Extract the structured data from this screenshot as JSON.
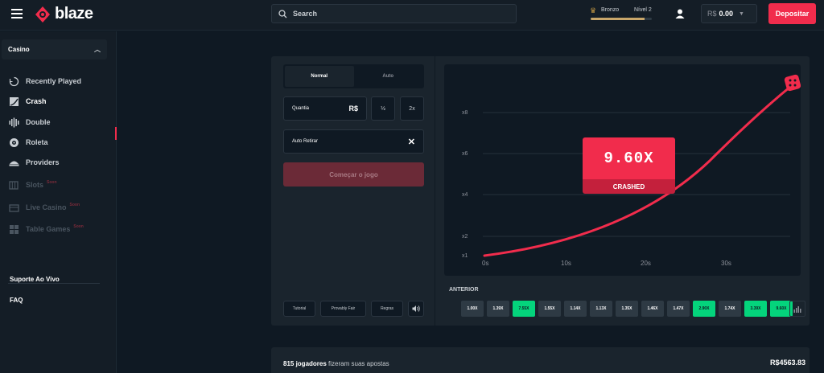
{
  "header": {
    "brand": "blaze",
    "search_placeholder": "Search",
    "rank": {
      "name": "Bronzo",
      "level": "Nível 2",
      "progress": 0.88
    },
    "balance": {
      "currency": "R$",
      "amount": "0.00"
    },
    "deposit_label": "Depositar"
  },
  "sidebar": {
    "section_title": "Casino",
    "items": [
      {
        "label": "Recently Played",
        "icon": "history-icon"
      },
      {
        "label": "Crash",
        "icon": "crash-chart-icon",
        "active": true
      },
      {
        "label": "Double",
        "icon": "double-bars-icon"
      },
      {
        "label": "Roleta",
        "icon": "roulette-icon"
      },
      {
        "label": "Providers",
        "icon": "providers-icon"
      },
      {
        "label": "Slots",
        "icon": "slots-icon",
        "badge": "Soon"
      },
      {
        "label": "Live Casino",
        "icon": "live-casino-icon",
        "badge": "Soon"
      },
      {
        "label": "Table Games",
        "icon": "table-games-icon",
        "badge": "Soon"
      }
    ],
    "links": [
      "Suporte Ao Vivo",
      "FAQ"
    ]
  },
  "controls": {
    "tabs": [
      "Normal",
      "Auto"
    ],
    "amount_label": "Quantia",
    "amount_currency": "R$",
    "half_label": "½",
    "double_label": "2x",
    "auto_cashout_label": "Auto Retirar",
    "start_label": "Começar o jogo",
    "footer_buttons": [
      "Tutorial",
      "Provably Fair",
      "Regras"
    ]
  },
  "graph": {
    "y_ticks": [
      "x8",
      "x6",
      "x4",
      "x2",
      "x1"
    ],
    "x_ticks": [
      "0s",
      "10s",
      "20s",
      "30s"
    ],
    "crash_value": "9.60X",
    "crash_label": "CRASHED"
  },
  "history": {
    "title": "ANTERIOR",
    "values": [
      {
        "v": "1.00X",
        "win": false
      },
      {
        "v": "1.39X",
        "win": false
      },
      {
        "v": "7.55X",
        "win": true
      },
      {
        "v": "1.55X",
        "win": false
      },
      {
        "v": "1.14X",
        "win": false
      },
      {
        "v": "1.13X",
        "win": false
      },
      {
        "v": "1.35X",
        "win": false
      },
      {
        "v": "1.46X",
        "win": false
      },
      {
        "v": "1.47X",
        "win": false
      },
      {
        "v": "2.90X",
        "win": true
      },
      {
        "v": "1.74X",
        "win": false
      },
      {
        "v": "3.39X",
        "win": true
      },
      {
        "v": "9.60X",
        "win": true
      }
    ]
  },
  "players": {
    "count": "815 jogadores",
    "text": "fizeram suas apostas",
    "total": "R$4563.83"
  },
  "colors": {
    "accent": "#f12c4c",
    "win": "#04d47c",
    "background": "#0f1923",
    "panel": "#1a242d"
  }
}
